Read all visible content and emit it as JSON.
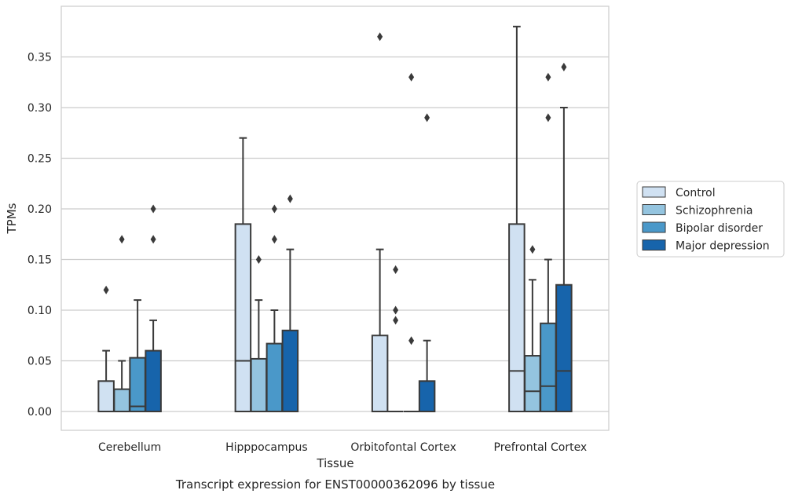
{
  "chart_data": {
    "type": "box",
    "caption": "Transcript expression for ENST00000362096 by tissue",
    "xlabel": "Tissue",
    "ylabel": "TPMs",
    "ylim": [
      -0.018,
      0.397
    ],
    "yticks": [
      "0.00",
      "0.05",
      "0.10",
      "0.15",
      "0.20",
      "0.25",
      "0.30",
      "0.35"
    ],
    "ytick_values": [
      0,
      0.05,
      0.1,
      0.15,
      0.2,
      0.25,
      0.3,
      0.35
    ],
    "grid": true,
    "legend_position": "right",
    "categories": [
      "Cerebellum",
      "Hipppocampus",
      "Orbitofontal Cortex",
      "Prefrontal Cortex"
    ],
    "series": [
      {
        "name": "Control",
        "color": "#d0e1f2",
        "boxes": [
          {
            "q1": 0,
            "median": 0,
            "q3": 0.03,
            "whisker_low": 0,
            "whisker_high": 0.06,
            "outliers": [
              0.12
            ]
          },
          {
            "q1": 0,
            "median": 0.05,
            "q3": 0.185,
            "whisker_low": 0,
            "whisker_high": 0.27,
            "outliers": []
          },
          {
            "q1": 0,
            "median": 0,
            "q3": 0.075,
            "whisker_low": 0,
            "whisker_high": 0.16,
            "outliers": [
              0.37
            ]
          },
          {
            "q1": 0,
            "median": 0.04,
            "q3": 0.185,
            "whisker_low": 0,
            "whisker_high": 0.38,
            "outliers": []
          }
        ]
      },
      {
        "name": "Schizophrenia",
        "color": "#94c4df",
        "boxes": [
          {
            "q1": 0,
            "median": 0,
            "q3": 0.022,
            "whisker_low": 0,
            "whisker_high": 0.05,
            "outliers": [
              0.17
            ]
          },
          {
            "q1": 0,
            "median": 0,
            "q3": 0.052,
            "whisker_low": 0,
            "whisker_high": 0.11,
            "outliers": [
              0.15
            ]
          },
          {
            "q1": 0,
            "median": 0,
            "q3": 0,
            "whisker_low": 0,
            "whisker_high": 0,
            "outliers": [
              0.14,
              0.1,
              0.09
            ]
          },
          {
            "q1": 0,
            "median": 0.02,
            "q3": 0.055,
            "whisker_low": 0,
            "whisker_high": 0.13,
            "outliers": [
              0.16
            ]
          }
        ]
      },
      {
        "name": "Bipolar disorder",
        "color": "#4a98c9",
        "boxes": [
          {
            "q1": 0,
            "median": 0.005,
            "q3": 0.053,
            "whisker_low": 0,
            "whisker_high": 0.11,
            "outliers": []
          },
          {
            "q1": 0,
            "median": 0,
            "q3": 0.067,
            "whisker_low": 0,
            "whisker_high": 0.1,
            "outliers": [
              0.2,
              0.17
            ]
          },
          {
            "q1": 0,
            "median": 0,
            "q3": 0,
            "whisker_low": 0,
            "whisker_high": 0,
            "outliers": [
              0.33,
              0.07
            ]
          },
          {
            "q1": 0,
            "median": 0.025,
            "q3": 0.087,
            "whisker_low": 0,
            "whisker_high": 0.15,
            "outliers": [
              0.33,
              0.29
            ]
          }
        ]
      },
      {
        "name": "Major depression",
        "color": "#1764ab",
        "boxes": [
          {
            "q1": 0,
            "median": 0,
            "q3": 0.06,
            "whisker_low": 0,
            "whisker_high": 0.09,
            "outliers": [
              0.2,
              0.17
            ]
          },
          {
            "q1": 0,
            "median": 0,
            "q3": 0.08,
            "whisker_low": 0,
            "whisker_high": 0.16,
            "outliers": [
              0.21
            ]
          },
          {
            "q1": 0,
            "median": 0,
            "q3": 0.03,
            "whisker_low": 0,
            "whisker_high": 0.07,
            "outliers": [
              0.29
            ]
          },
          {
            "q1": 0,
            "median": 0.04,
            "q3": 0.125,
            "whisker_low": 0,
            "whisker_high": 0.3,
            "outliers": [
              0.34
            ]
          }
        ]
      }
    ]
  }
}
